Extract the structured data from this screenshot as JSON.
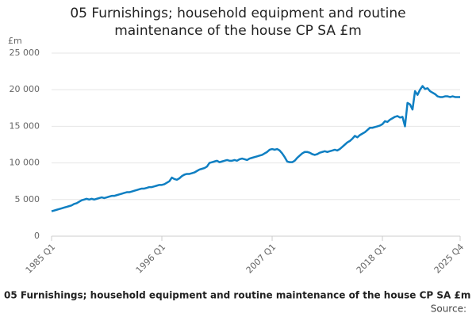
{
  "chart_data": {
    "type": "line",
    "title": "05 Furnishings; household equipment and routine maintenance of the house CP SA £m",
    "y_unit": "£m",
    "caption": "05 Furnishings; household equipment and routine maintenance of the house CP SA £m",
    "source": "Source:",
    "categories": [
      "1985 Q1",
      null,
      null,
      null,
      null,
      null,
      null,
      null,
      null,
      null,
      null,
      null,
      null,
      null,
      null,
      null,
      null,
      null,
      null,
      null,
      null,
      null,
      null,
      null,
      null,
      null,
      null,
      null,
      null,
      null,
      null,
      null,
      null,
      null,
      null,
      null,
      null,
      null,
      null,
      null,
      null,
      null,
      null,
      null,
      "1996 Q1",
      null,
      null,
      null,
      null,
      null,
      null,
      null,
      null,
      null,
      null,
      null,
      null,
      null,
      null,
      null,
      null,
      null,
      null,
      null,
      null,
      null,
      null,
      null,
      null,
      null,
      null,
      null,
      null,
      null,
      null,
      null,
      null,
      null,
      null,
      null,
      null,
      null,
      null,
      null,
      null,
      null,
      null,
      null,
      "2007 Q1",
      null,
      null,
      null,
      null,
      null,
      null,
      null,
      null,
      null,
      null,
      null,
      null,
      null,
      null,
      null,
      null,
      null,
      null,
      null,
      null,
      null,
      null,
      null,
      null,
      null,
      null,
      null,
      null,
      null,
      null,
      null,
      null,
      null,
      null,
      null,
      null,
      null,
      null,
      null,
      null,
      null,
      null,
      null,
      "2018 Q1",
      null,
      null,
      null,
      null,
      null,
      null,
      null,
      null,
      null,
      null,
      null,
      null,
      null,
      null,
      null,
      null,
      null,
      null,
      null,
      null,
      null,
      null,
      null,
      null,
      null,
      null,
      null,
      null,
      null,
      null,
      "2025 Q4"
    ],
    "series": [
      {
        "color": "#0f7fc2",
        "values": [
          3400,
          3500,
          3600,
          3700,
          3800,
          3900,
          4000,
          4100,
          4200,
          4400,
          4500,
          4700,
          4900,
          5000,
          5100,
          5000,
          5100,
          5000,
          5100,
          5200,
          5300,
          5200,
          5300,
          5400,
          5500,
          5500,
          5600,
          5700,
          5800,
          5900,
          6000,
          6000,
          6100,
          6200,
          6300,
          6400,
          6500,
          6500,
          6600,
          6700,
          6700,
          6800,
          6900,
          7000,
          7000,
          7100,
          7300,
          7500,
          8000,
          7800,
          7700,
          7900,
          8200,
          8400,
          8500,
          8500,
          8600,
          8700,
          8900,
          9100,
          9200,
          9300,
          9500,
          10000,
          10100,
          10200,
          10300,
          10100,
          10200,
          10300,
          10400,
          10300,
          10300,
          10400,
          10300,
          10500,
          10600,
          10500,
          10400,
          10600,
          10700,
          10800,
          10900,
          11000,
          11100,
          11300,
          11500,
          11800,
          11900,
          11800,
          11900,
          11700,
          11300,
          10800,
          10200,
          10100,
          10100,
          10300,
          10700,
          11000,
          11300,
          11500,
          11500,
          11400,
          11200,
          11100,
          11200,
          11400,
          11500,
          11600,
          11500,
          11600,
          11700,
          11800,
          11700,
          11900,
          12200,
          12500,
          12800,
          13000,
          13300,
          13700,
          13500,
          13800,
          14000,
          14200,
          14500,
          14800,
          14800,
          14900,
          15000,
          15100,
          15300,
          15700,
          15600,
          15900,
          16100,
          16300,
          16400,
          16200,
          16300,
          15000,
          18200,
          18000,
          17300,
          19800,
          19300,
          20000,
          20500,
          20100,
          20200,
          19800,
          19600,
          19400,
          19100,
          19000,
          19000,
          19100,
          19100,
          19000,
          19100,
          19000,
          19000,
          19000
        ]
      }
    ],
    "ylim": [
      0,
      25000
    ],
    "yticks": [
      0,
      {
        "value": 5000,
        "label": "5 000"
      },
      {
        "value": 10000,
        "label": "10 000"
      },
      {
        "value": 15000,
        "label": "15 000"
      },
      {
        "value": 20000,
        "label": "20 000"
      },
      {
        "value": 25000,
        "label": "25 000"
      }
    ],
    "grid": true
  }
}
